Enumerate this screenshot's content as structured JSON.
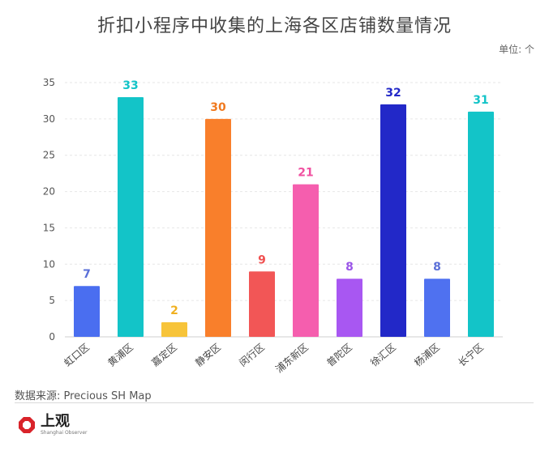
{
  "header": {
    "title": "折扣小程序中收集的上海各区店铺数量情况",
    "unit": "单位: 个"
  },
  "footer": {
    "source": "数据来源: Precious SH Map",
    "logo_cn": "上观",
    "logo_en": "Shanghai Observer"
  },
  "chart_data": {
    "type": "bar",
    "title": "折扣小程序中收集的上海各区店铺数量情况",
    "xlabel": "",
    "ylabel": "",
    "ylim": [
      0,
      35
    ],
    "yticks": [
      0,
      5,
      10,
      15,
      20,
      25,
      30,
      35
    ],
    "grid": true,
    "categories": [
      "虹口区",
      "黄浦区",
      "嘉定区",
      "静安区",
      "闵行区",
      "浦东新区",
      "普陀区",
      "徐汇区",
      "杨浦区",
      "长宁区"
    ],
    "values": [
      7,
      33,
      2,
      30,
      9,
      21,
      8,
      32,
      8,
      31
    ],
    "colors": [
      "#4a6ef0",
      "#13c4c8",
      "#f7c43a",
      "#f97f2b",
      "#f25656",
      "#f55eae",
      "#a857f2",
      "#2228c8",
      "#4f71f0",
      "#13c4c8"
    ],
    "label_colors": [
      "#5a6fd8",
      "#13c4c8",
      "#f0b020",
      "#f07a20",
      "#f05050",
      "#f050a0",
      "#9a55e8",
      "#2228c8",
      "#5a6fd8",
      "#13c4c8"
    ]
  }
}
